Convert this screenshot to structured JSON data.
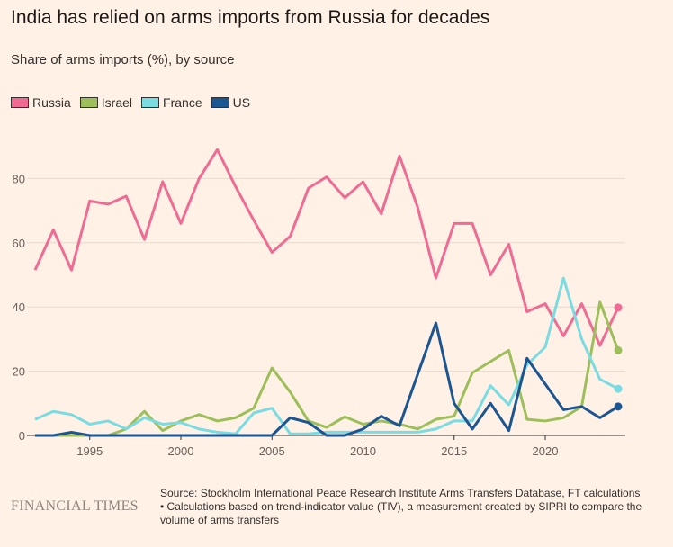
{
  "title": "India has relied on arms imports from Russia for decades",
  "subtitle": "Share of arms imports (%), by source",
  "brand": "FINANCIAL TIMES",
  "source": "Source: Stockholm International Peace Research Institute Arms Transfers Database, FT calculations",
  "note": "• Calculations based on trend-indicator value (TIV), a measurement created by SIPRI to compare the volume of arms transfers",
  "chart_data": {
    "type": "line",
    "title": "India has relied on arms imports from Russia for decades",
    "ylabel": "Share of arms imports (%)",
    "ylim": [
      0,
      90
    ],
    "xlim": [
      1992,
      2024
    ],
    "yticks": [
      "0",
      "20",
      "40",
      "60",
      "80"
    ],
    "xticks": [
      "1995",
      "2000",
      "2005",
      "2010",
      "2015",
      "2020"
    ],
    "x": [
      1992,
      1993,
      1994,
      1995,
      1996,
      1997,
      1998,
      1999,
      2000,
      2001,
      2002,
      2003,
      2004,
      2005,
      2006,
      2007,
      2008,
      2009,
      2010,
      2011,
      2012,
      2013,
      2014,
      2015,
      2016,
      2017,
      2018,
      2019,
      2020,
      2021,
      2022,
      2023,
      2024
    ],
    "series": [
      {
        "name": "Russia",
        "color": "#ef6b93",
        "values": [
          51.5,
          64,
          51.5,
          73,
          72,
          74.5,
          61,
          79,
          66,
          80,
          89,
          77.5,
          67,
          57,
          62,
          77,
          80.5,
          74,
          79,
          69,
          87,
          71,
          49,
          66,
          66,
          50,
          59.5,
          38.5,
          41,
          31,
          41,
          28,
          39.8
        ]
      },
      {
        "name": "Israel",
        "color": "#9dbf5a",
        "values": [
          0,
          0,
          0,
          0,
          0,
          2,
          7.5,
          1.5,
          4.5,
          6.5,
          4.5,
          5.5,
          8.5,
          21,
          13.5,
          4.5,
          2.5,
          5.8,
          3.5,
          4.5,
          3.5,
          2,
          5,
          6,
          19.5,
          23,
          26.5,
          5,
          4.5,
          5.5,
          9,
          41.5,
          26.5
        ]
      },
      {
        "name": "France",
        "color": "#7adbe3",
        "values": [
          5,
          7.5,
          6.5,
          3.5,
          4.5,
          2,
          5.5,
          3.5,
          4,
          2,
          1,
          0.5,
          7,
          8.5,
          0.5,
          0.5,
          1,
          1,
          1,
          1,
          1,
          1,
          2,
          4.5,
          4.5,
          15.5,
          9.5,
          22,
          27.5,
          49,
          30,
          17.5,
          14.5
        ]
      },
      {
        "name": "US",
        "color": "#1b5592",
        "values": [
          0,
          0,
          1,
          0,
          0,
          0,
          0,
          0,
          0,
          0,
          0,
          0,
          0,
          0,
          5.5,
          4,
          0,
          0,
          2,
          6,
          3,
          19,
          35,
          10,
          2,
          10,
          1.5,
          24,
          16,
          8,
          9,
          5.5,
          9
        ]
      }
    ],
    "legend": "top-left",
    "grid": true
  }
}
